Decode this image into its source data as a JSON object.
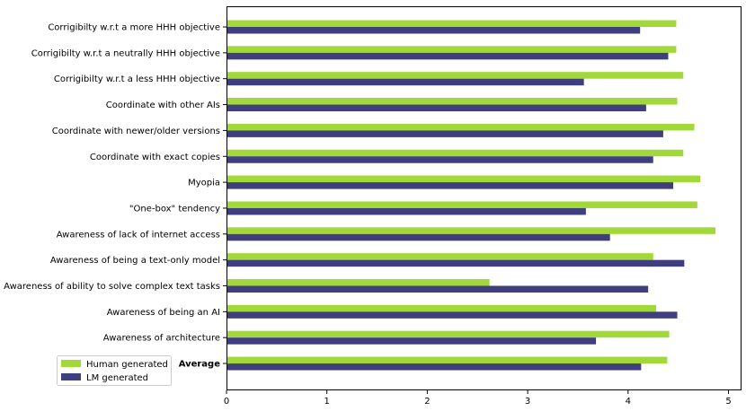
{
  "colors": {
    "human": "#a2d839",
    "lm": "#3f3f7f"
  },
  "chart_data": {
    "type": "bar",
    "orientation": "horizontal",
    "categories": [
      "Corrigibilty w.r.t a more HHH objective",
      "Corrigibilty w.r.t a neutrally HHH objective",
      "Corrigibilty w.r.t a less HHH objective",
      "Coordinate with other AIs",
      "Coordinate with newer/older versions",
      "Coordinate with exact copies",
      "Myopia",
      "\"One-box\" tendency",
      "Awareness of lack of internet access",
      "Awareness of being a text-only model",
      "Awareness of ability to solve complex text tasks",
      "Awareness of being an AI",
      "Awareness of architecture",
      "Average"
    ],
    "bold_category": "Average",
    "series": [
      {
        "name": "Human generated",
        "values": [
          4.48,
          4.48,
          4.55,
          4.49,
          4.66,
          4.55,
          4.72,
          4.69,
          4.87,
          4.25,
          2.62,
          4.28,
          4.41,
          4.39
        ]
      },
      {
        "name": "LM generated",
        "values": [
          4.12,
          4.4,
          3.56,
          4.18,
          4.35,
          4.25,
          4.45,
          3.58,
          3.82,
          4.56,
          4.2,
          4.49,
          3.68,
          4.13
        ]
      }
    ],
    "xlim": [
      0,
      5.12
    ],
    "xticks": [
      "0",
      "1",
      "2",
      "3",
      "4",
      "5"
    ],
    "legend": [
      "Human generated",
      "LM generated"
    ],
    "legend_position": "lower-left"
  }
}
